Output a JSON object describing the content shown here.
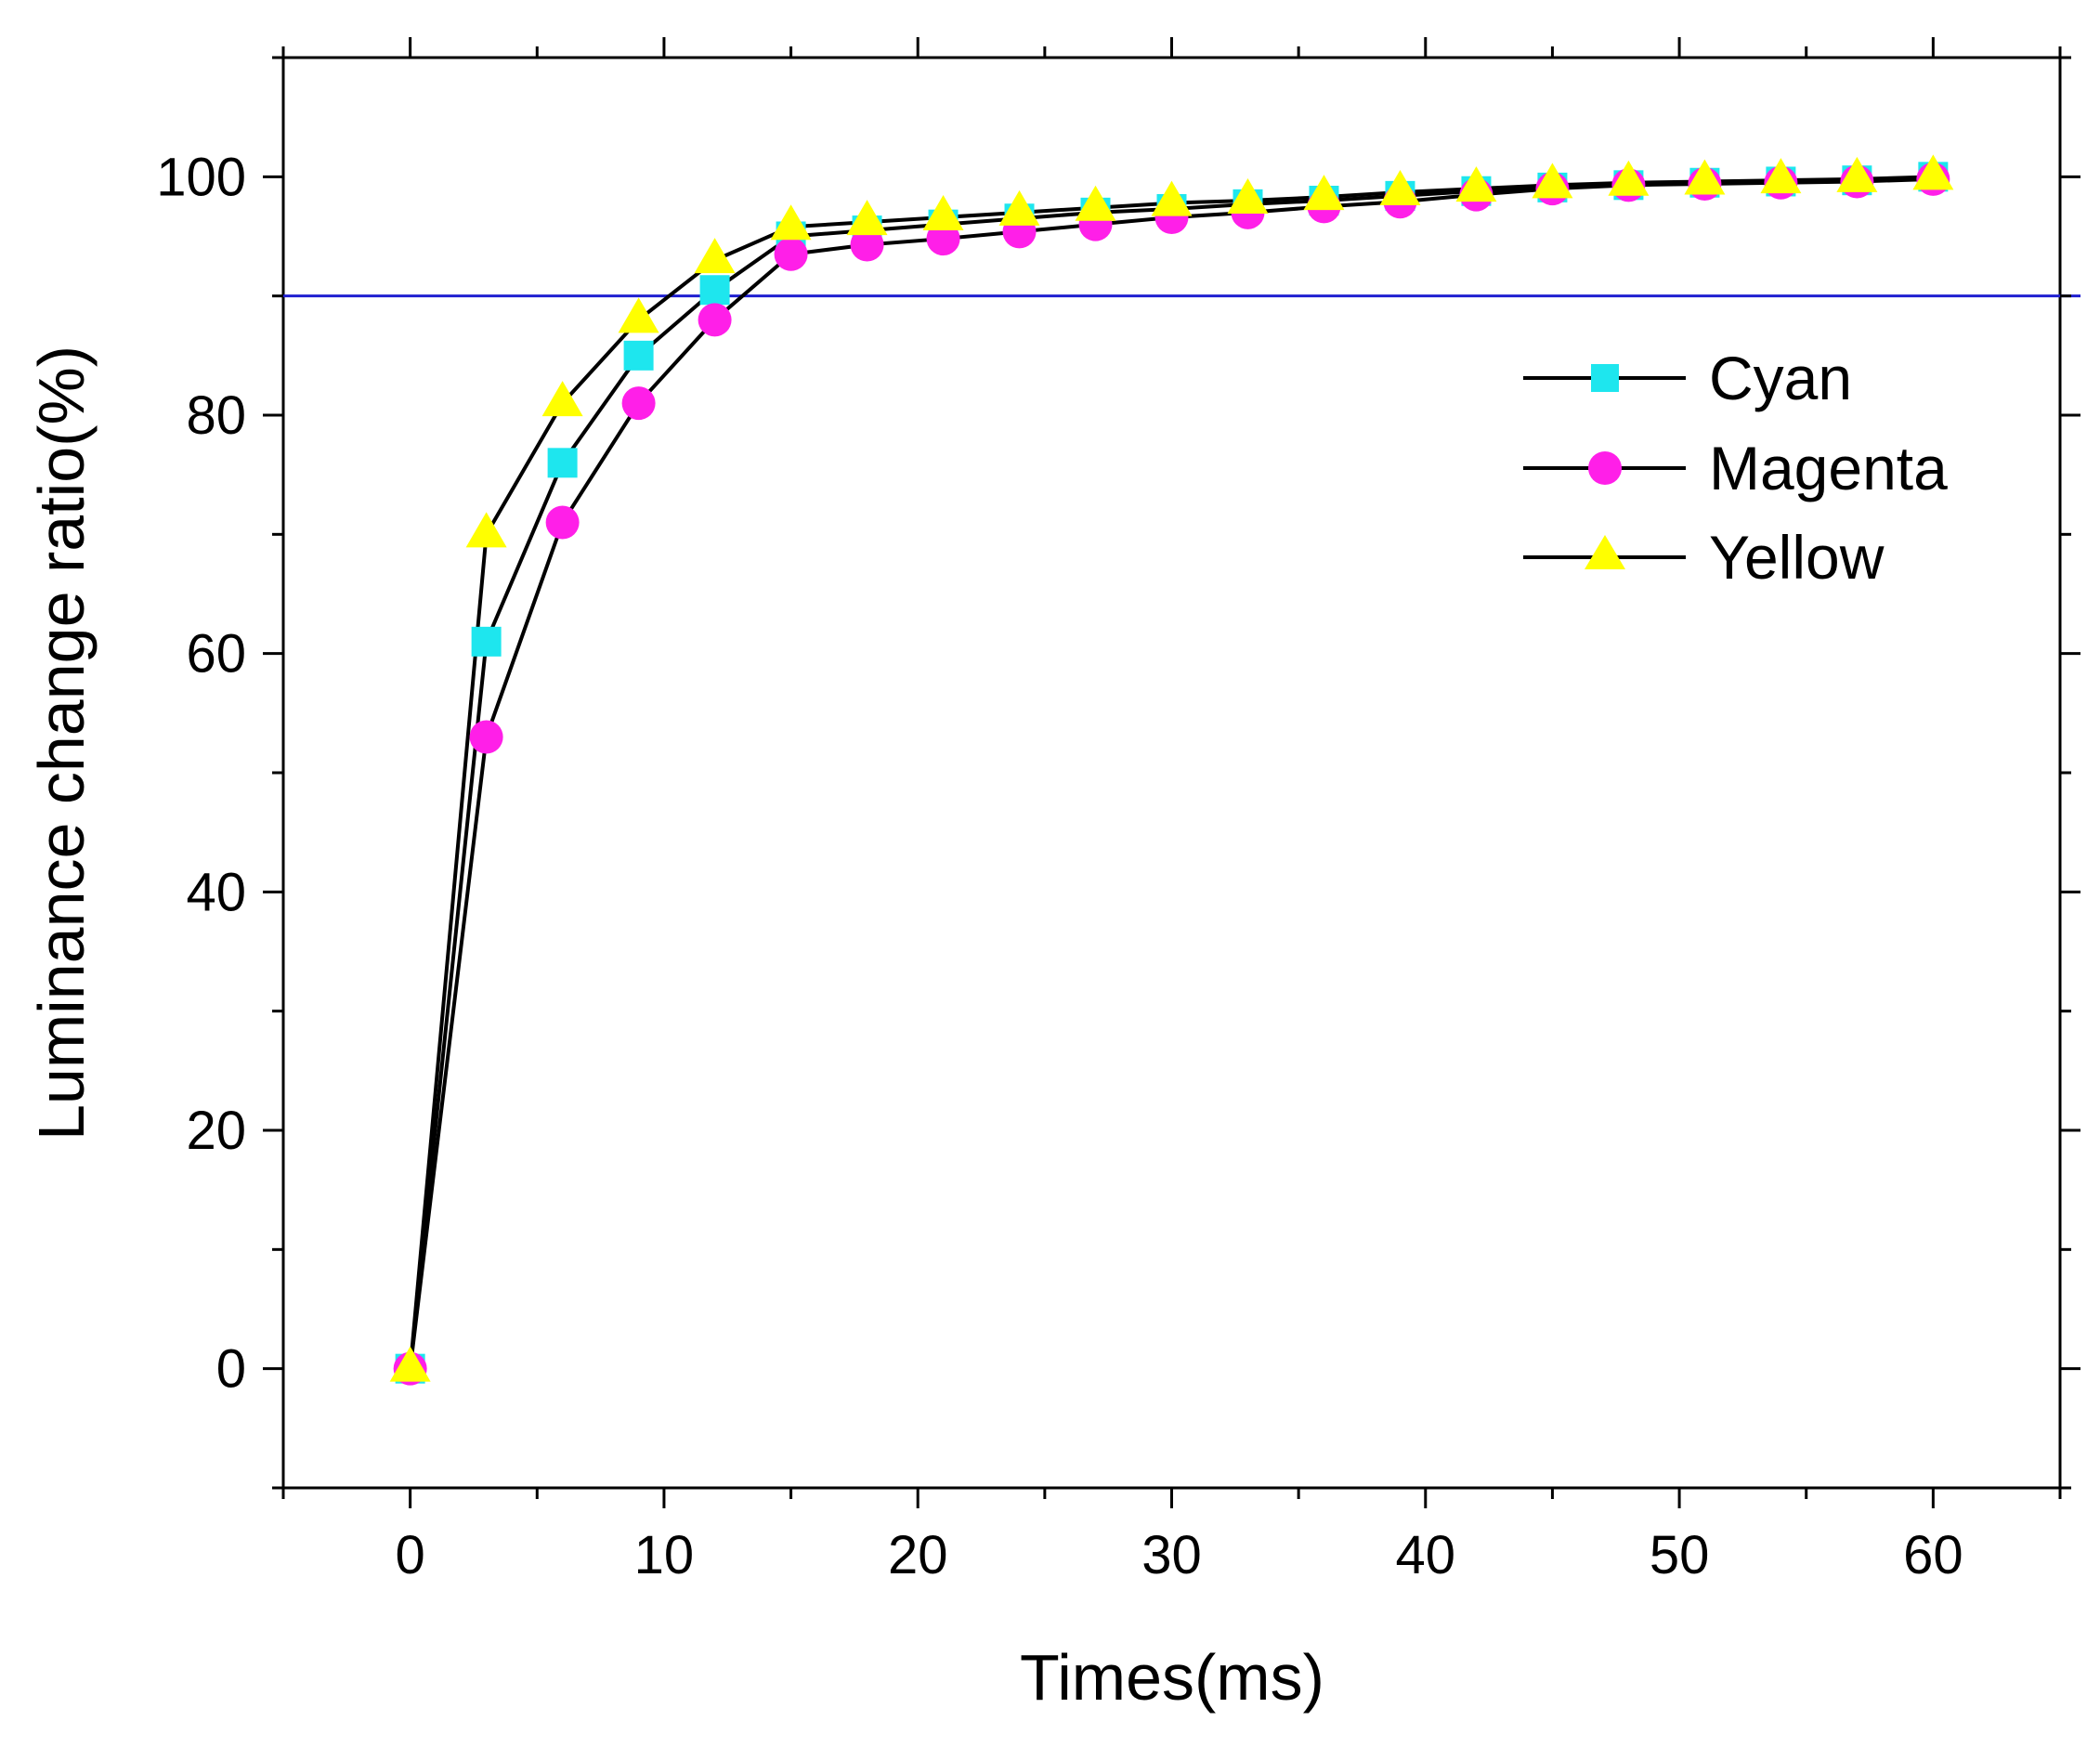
{
  "chart_data": {
    "type": "line",
    "title": "",
    "xlabel": "Times(ms)",
    "ylabel": "Luminance change ratio(%)",
    "xlim": [
      -5,
      65
    ],
    "ylim": [
      -10,
      110
    ],
    "x_ticks": [
      0,
      10,
      20,
      30,
      40,
      50,
      60
    ],
    "y_ticks": [
      0,
      20,
      40,
      60,
      80,
      100
    ],
    "x_minor_step": 5,
    "y_minor_step": 10,
    "reference_line": {
      "y": 90,
      "color": "#1f1fd0"
    },
    "legend_position": "right, upper-middle",
    "x": [
      0,
      3,
      6,
      9,
      12,
      15,
      18,
      21,
      24,
      27,
      30,
      33,
      36,
      39,
      42,
      45,
      48,
      51,
      54,
      57,
      60
    ],
    "series": [
      {
        "name": "Cyan",
        "marker": "square",
        "color": "#1ee6ee",
        "values": [
          0,
          61,
          76,
          85,
          90.5,
          95,
          95.5,
          96,
          96.5,
          97,
          97.3,
          97.7,
          98,
          98.4,
          98.8,
          99.1,
          99.3,
          99.5,
          99.6,
          99.7,
          100
        ]
      },
      {
        "name": "Magenta",
        "marker": "circle",
        "color": "#ff1fe8",
        "values": [
          0,
          53,
          71,
          81,
          88,
          93.5,
          94.3,
          94.8,
          95.4,
          96,
          96.6,
          97,
          97.5,
          97.9,
          98.5,
          99,
          99.3,
          99.4,
          99.5,
          99.6,
          99.8
        ]
      },
      {
        "name": "Yellow",
        "marker": "triangle",
        "color": "#ffff00",
        "values": [
          0,
          70,
          81,
          88,
          93,
          95.8,
          96.2,
          96.6,
          97,
          97.4,
          97.8,
          98,
          98.3,
          98.7,
          99,
          99.3,
          99.5,
          99.6,
          99.7,
          99.8,
          100
        ]
      }
    ]
  }
}
